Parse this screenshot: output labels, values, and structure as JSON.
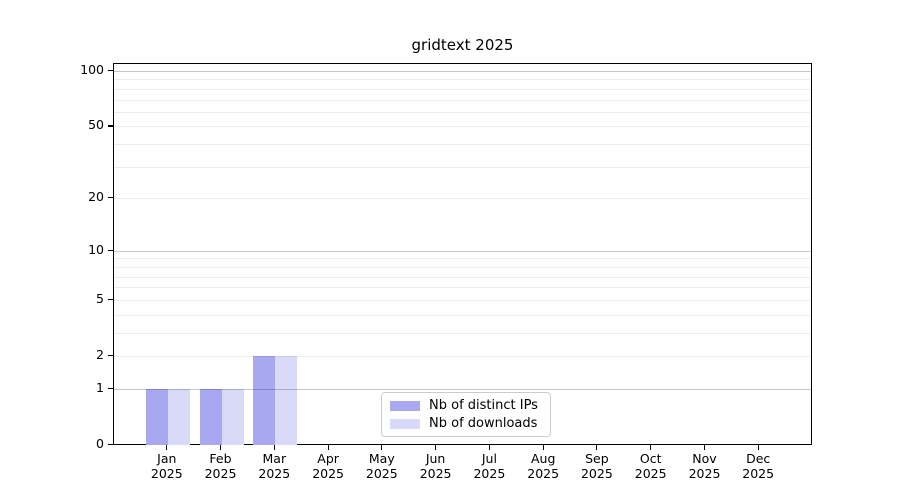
{
  "chart_data": {
    "type": "bar",
    "title": "gridtext 2025",
    "categories": [
      "Jan",
      "Feb",
      "Mar",
      "Apr",
      "May",
      "Jun",
      "Jul",
      "Aug",
      "Sep",
      "Oct",
      "Nov",
      "Dec"
    ],
    "x_tick_second_line": "2025",
    "series": [
      {
        "name": "Nb of distinct IPs",
        "color": "#a8a8f0",
        "values": [
          1,
          1,
          2,
          0,
          0,
          0,
          0,
          0,
          0,
          0,
          0,
          0
        ]
      },
      {
        "name": "Nb of downloads",
        "color": "#d9d9f8",
        "values": [
          1,
          1,
          2,
          0,
          0,
          0,
          0,
          0,
          0,
          0,
          0,
          0
        ]
      }
    ],
    "y_scale": "log10(1+v)",
    "ylim": [
      0,
      100
    ],
    "y_ticks": [
      0,
      1,
      2,
      5,
      10,
      20,
      50,
      100
    ],
    "minor_gridlines": [
      2,
      3,
      4,
      5,
      6,
      7,
      8,
      9,
      20,
      30,
      40,
      50,
      60,
      70,
      80,
      90
    ],
    "major_gridlines": [
      1,
      10,
      100
    ],
    "grid": "horizontal, drawn above bars",
    "legend": {
      "position": "lower center",
      "entries": [
        "Nb of distinct IPs",
        "Nb of downloads"
      ]
    },
    "colors": {
      "axis": "#000000",
      "major_grid": "#c9c9c9",
      "minor_grid": "#ededed",
      "background": "#ffffff",
      "legend_border": "#cccccc"
    }
  }
}
